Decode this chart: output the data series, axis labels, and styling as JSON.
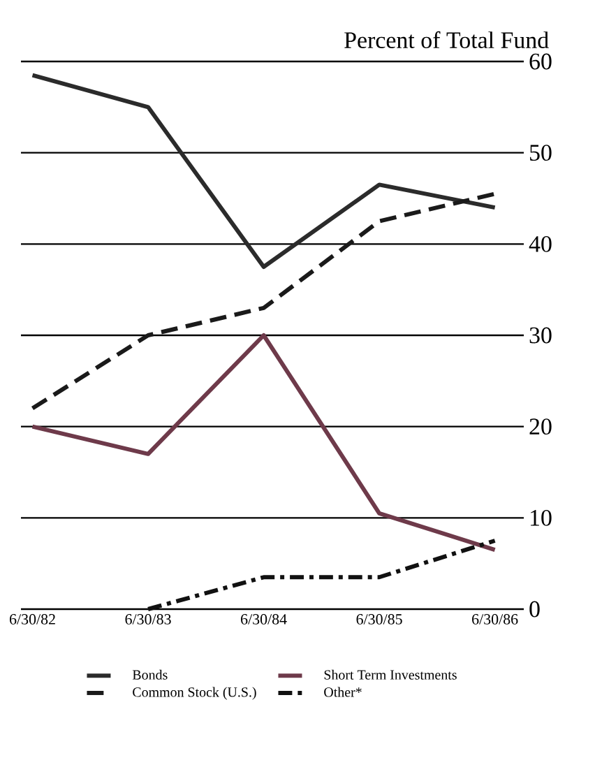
{
  "chart_data": {
    "type": "line",
    "ylabel": "Percent of Total Fund",
    "categories": [
      "6/30/82",
      "6/30/83",
      "6/30/84",
      "6/30/85",
      "6/30/86"
    ],
    "series": [
      {
        "name": "Bonds",
        "color": "#2b2b2b",
        "line_style": "solid",
        "values": [
          58.5,
          55,
          37.5,
          46.5,
          44
        ]
      },
      {
        "name": "Short Term Investments",
        "color": "#6e3a4a",
        "line_style": "solid",
        "values": [
          20,
          17,
          30,
          10.5,
          6.5
        ]
      },
      {
        "name": "Common Stock (U.S.)",
        "color": "#1a1a1a",
        "line_style": "dashed",
        "values": [
          22,
          30,
          33,
          42.5,
          45.5
        ]
      },
      {
        "name": "Other*",
        "color": "#111111",
        "line_style": "dashdot",
        "values": [
          null,
          0,
          3.5,
          3.5,
          7.5
        ]
      }
    ],
    "ylim": [
      0,
      60
    ],
    "yticks": [
      0,
      10,
      20,
      30,
      40,
      50,
      60
    ],
    "grid": "y",
    "legend": "bottom",
    "marker": "none"
  }
}
